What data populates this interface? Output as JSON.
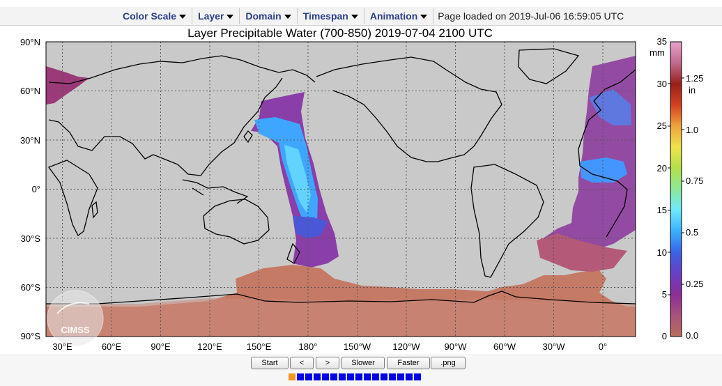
{
  "menu": {
    "items": [
      {
        "label": "Color Scale"
      },
      {
        "label": "Layer"
      },
      {
        "label": "Domain"
      },
      {
        "label": "Timespan"
      },
      {
        "label": "Animation"
      }
    ],
    "status": "Page loaded on 2019-Jul-06 16:59:05 UTC"
  },
  "map": {
    "title": "Layer Precipitable Water (700-850)  2019-07-04 2100 UTC",
    "lat_labels": [
      "90°N",
      "60°N",
      "30°N",
      "0°",
      "30°S",
      "60°S",
      "90°S"
    ],
    "lon_labels": [
      "30°E",
      "60°E",
      "90°E",
      "120°E",
      "150°E",
      "180°",
      "150°W",
      "120°W",
      "90°W",
      "60°W",
      "30°W",
      "0°"
    ],
    "logo_text": "CIMSS"
  },
  "colorbar": {
    "mm_unit": "mm",
    "in_unit": "in",
    "mm_ticks": [
      "35",
      "30",
      "25",
      "20",
      "15",
      "10",
      "5",
      "0"
    ],
    "in_ticks": [
      "1.25",
      "1.0",
      "0.75",
      "0.5",
      "0.25",
      "0.0"
    ],
    "colors": [
      "#b86f5e",
      "#a8527c",
      "#8c2e98",
      "#6a3ec8",
      "#3a62e8",
      "#3ab0ff",
      "#6ee8ff",
      "#8de89a",
      "#b2e04a",
      "#efe24a",
      "#f0a23c",
      "#d6401f",
      "#9a1f1c",
      "#c06a8e",
      "#e8a2cc"
    ]
  },
  "controls": {
    "buttons": [
      {
        "label": "Start"
      },
      {
        "label": "<"
      },
      {
        "label": ">"
      },
      {
        "label": "Slower"
      },
      {
        "label": "Faster"
      },
      {
        "label": ".png"
      }
    ],
    "frame_count": 16,
    "active_frame": 1
  }
}
